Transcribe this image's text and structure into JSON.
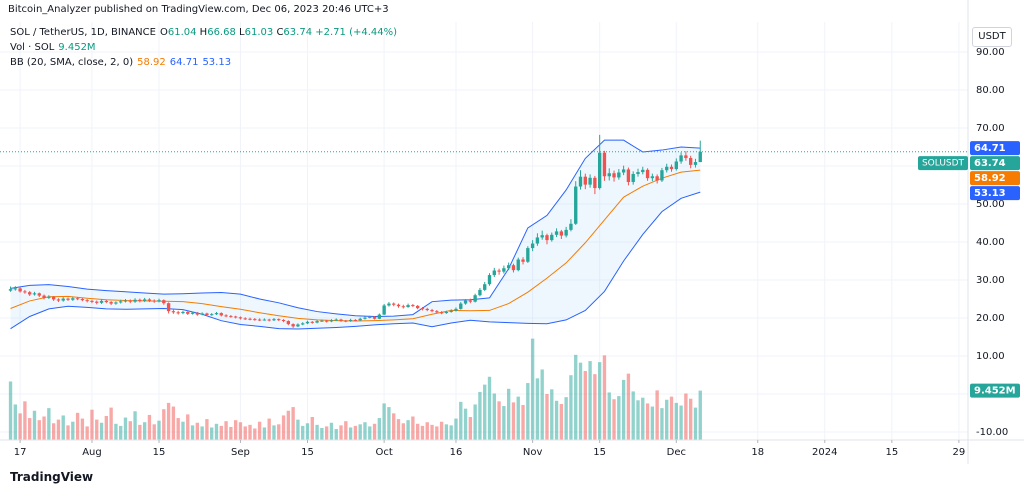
{
  "header": {
    "publisher_line": "Bitcoin_Analyzer published on TradingView.com, Dec 06, 2023 20:46 UTC+3",
    "logo": "TradingView"
  },
  "chart_data": {
    "type": "candlestick",
    "symbol": "SOL / TetherUS, 1D, BINANCE",
    "symbol_badge": "SOLUSDT",
    "price_unit": "USDT",
    "ohlc_letters": [
      "O",
      "H",
      "L",
      "C"
    ],
    "change": {
      "value": 2.71,
      "label": "+2.71"
    },
    "change_pct": {
      "value": 4.44,
      "label": "(+4.44%)"
    },
    "up_color": "#26a69a",
    "down_color": "#ef5350",
    "xlim": [
      -2.2,
      199.9
    ],
    "ylim": [
      -12.1,
      97.9
    ],
    "volume_ylim": [
      0,
      80
    ],
    "grid": true,
    "xticks": [
      {
        "value": 2,
        "label": "17"
      },
      {
        "value": 17,
        "label": "Aug"
      },
      {
        "value": 31,
        "label": "15"
      },
      {
        "value": 48,
        "label": "Sep"
      },
      {
        "value": 62,
        "label": "15"
      },
      {
        "value": 78,
        "label": "Oct"
      },
      {
        "value": 93,
        "label": "16"
      },
      {
        "value": 109,
        "label": "Nov"
      },
      {
        "value": 123,
        "label": "15"
      },
      {
        "value": 139,
        "label": "Dec"
      },
      {
        "value": 156,
        "label": "18"
      },
      {
        "value": 170,
        "label": "2024"
      },
      {
        "value": 184,
        "label": "15"
      },
      {
        "value": 198,
        "label": "29"
      }
    ],
    "yticks": [
      {
        "value": 90,
        "label": "90.00"
      },
      {
        "value": 80,
        "label": "80.00"
      },
      {
        "value": 70,
        "label": "70.00"
      },
      {
        "value": 60,
        "label": "60.00"
      },
      {
        "value": 50,
        "label": "50.00"
      },
      {
        "value": 40,
        "label": "40.00"
      },
      {
        "value": 30,
        "label": "30.00"
      },
      {
        "value": 20,
        "label": "20.00"
      },
      {
        "value": 10,
        "label": "10.00"
      },
      {
        "value": 0,
        "label": "0.00"
      },
      {
        "value": -10,
        "label": "-10.00"
      }
    ],
    "ohlc": [
      [
        27.2,
        28.3,
        26.9,
        27.6
      ],
      [
        27.6,
        28.4,
        27.2,
        27.8
      ],
      [
        27.8,
        28.1,
        26.7,
        27.0
      ],
      [
        27.0,
        27.4,
        26.4,
        26.8
      ],
      [
        26.8,
        27.1,
        25.8,
        26.2
      ],
      [
        26.2,
        26.9,
        25.9,
        26.5
      ],
      [
        26.5,
        26.7,
        25.5,
        25.9
      ],
      [
        25.9,
        26.2,
        24.9,
        25.3
      ],
      [
        25.3,
        26.0,
        25.0,
        25.6
      ],
      [
        25.6,
        25.8,
        24.5,
        24.9
      ],
      [
        24.9,
        25.2,
        24.2,
        24.6
      ],
      [
        24.6,
        25.5,
        24.3,
        25.1
      ],
      [
        25.1,
        25.4,
        24.5,
        24.8
      ],
      [
        24.8,
        25.6,
        24.5,
        25.2
      ],
      [
        25.2,
        25.5,
        24.7,
        25.0
      ],
      [
        25.0,
        25.3,
        24.4,
        24.7
      ],
      [
        24.7,
        25.0,
        24.1,
        24.5
      ],
      [
        24.5,
        24.8,
        23.9,
        24.3
      ],
      [
        24.3,
        24.6,
        23.6,
        24.0
      ],
      [
        24.0,
        24.9,
        23.7,
        24.5
      ],
      [
        24.5,
        24.8,
        23.9,
        24.2
      ],
      [
        24.2,
        24.5,
        23.4,
        23.8
      ],
      [
        23.8,
        24.4,
        23.5,
        24.1
      ],
      [
        24.1,
        24.8,
        23.8,
        24.4
      ],
      [
        24.4,
        25.0,
        24.1,
        24.6
      ],
      [
        24.6,
        24.9,
        23.9,
        24.3
      ],
      [
        24.3,
        25.2,
        24.0,
        24.8
      ],
      [
        24.8,
        25.1,
        24.1,
        24.5
      ],
      [
        24.5,
        25.3,
        24.2,
        24.9
      ],
      [
        24.9,
        25.2,
        24.2,
        24.6
      ],
      [
        24.6,
        24.9,
        24.0,
        24.4
      ],
      [
        24.4,
        25.1,
        24.1,
        24.7
      ],
      [
        24.7,
        24.9,
        23.5,
        23.9
      ],
      [
        23.9,
        24.1,
        21.2,
        21.8
      ],
      [
        21.8,
        22.2,
        21.1,
        21.5
      ],
      [
        21.5,
        21.9,
        20.9,
        21.3
      ],
      [
        21.3,
        21.9,
        21.0,
        21.6
      ],
      [
        21.6,
        21.8,
        20.8,
        21.1
      ],
      [
        21.1,
        21.7,
        20.9,
        21.4
      ],
      [
        21.4,
        21.6,
        20.6,
        20.9
      ],
      [
        20.9,
        21.5,
        20.7,
        21.2
      ],
      [
        21.2,
        21.4,
        20.5,
        20.8
      ],
      [
        20.8,
        21.3,
        20.6,
        21.0
      ],
      [
        21.0,
        21.6,
        20.8,
        21.3
      ],
      [
        21.3,
        21.5,
        20.4,
        20.7
      ],
      [
        20.7,
        21.0,
        20.2,
        20.5
      ],
      [
        20.5,
        20.8,
        20.1,
        20.4
      ],
      [
        20.4,
        20.6,
        19.9,
        20.2
      ],
      [
        20.2,
        20.4,
        19.6,
        19.9
      ],
      [
        19.9,
        20.2,
        19.5,
        19.8
      ],
      [
        19.8,
        20.1,
        19.4,
        19.7
      ],
      [
        19.7,
        20.0,
        19.3,
        19.6
      ],
      [
        19.6,
        19.9,
        19.2,
        19.5
      ],
      [
        19.5,
        19.9,
        19.3,
        19.6
      ],
      [
        19.6,
        19.8,
        19.1,
        19.4
      ],
      [
        19.4,
        20.0,
        19.2,
        19.7
      ],
      [
        19.7,
        19.9,
        19.2,
        19.5
      ],
      [
        19.5,
        19.7,
        18.9,
        19.2
      ],
      [
        19.2,
        19.4,
        18.1,
        18.4
      ],
      [
        18.4,
        18.6,
        17.4,
        17.8
      ],
      [
        17.8,
        18.6,
        17.6,
        18.3
      ],
      [
        18.3,
        18.9,
        18.1,
        18.6
      ],
      [
        18.6,
        19.3,
        18.4,
        19.0
      ],
      [
        19.0,
        19.2,
        18.5,
        18.8
      ],
      [
        18.8,
        19.5,
        18.6,
        19.2
      ],
      [
        19.2,
        19.6,
        19.0,
        19.3
      ],
      [
        19.3,
        19.5,
        18.8,
        19.1
      ],
      [
        19.1,
        19.7,
        18.9,
        19.4
      ],
      [
        19.4,
        19.9,
        19.2,
        19.6
      ],
      [
        19.6,
        19.8,
        19.0,
        19.3
      ],
      [
        19.3,
        19.5,
        18.9,
        19.2
      ],
      [
        19.2,
        19.8,
        19.0,
        19.5
      ],
      [
        19.5,
        19.7,
        19.1,
        19.4
      ],
      [
        19.4,
        20.1,
        19.2,
        19.8
      ],
      [
        19.8,
        20.4,
        19.6,
        20.1
      ],
      [
        20.1,
        20.6,
        19.9,
        20.3
      ],
      [
        20.3,
        20.5,
        19.6,
        19.8
      ],
      [
        19.8,
        21.2,
        19.7,
        20.9
      ],
      [
        20.9,
        23.7,
        20.8,
        23.3
      ],
      [
        23.3,
        24.2,
        23.0,
        23.8
      ],
      [
        23.8,
        24.1,
        23.1,
        23.5
      ],
      [
        23.5,
        23.8,
        22.7,
        23.1
      ],
      [
        23.1,
        23.5,
        22.5,
        22.9
      ],
      [
        22.9,
        23.8,
        22.7,
        23.4
      ],
      [
        23.4,
        23.7,
        22.9,
        23.2
      ],
      [
        23.2,
        23.4,
        22.3,
        22.6
      ],
      [
        22.6,
        22.9,
        22.0,
        22.4
      ],
      [
        22.4,
        22.7,
        21.8,
        22.1
      ],
      [
        22.1,
        22.4,
        21.5,
        21.8
      ],
      [
        21.8,
        22.1,
        21.2,
        21.5
      ],
      [
        21.5,
        21.8,
        21.0,
        21.3
      ],
      [
        21.3,
        21.9,
        21.1,
        21.6
      ],
      [
        21.6,
        22.3,
        21.4,
        21.9
      ],
      [
        21.9,
        22.8,
        21.7,
        22.4
      ],
      [
        22.4,
        24.2,
        22.2,
        23.8
      ],
      [
        23.8,
        25.0,
        23.5,
        24.6
      ],
      [
        24.6,
        25.1,
        23.9,
        24.3
      ],
      [
        24.3,
        26.4,
        24.1,
        26.0
      ],
      [
        26.0,
        27.9,
        25.7,
        27.4
      ],
      [
        27.4,
        29.5,
        27.1,
        28.9
      ],
      [
        28.9,
        31.8,
        28.5,
        31.3
      ],
      [
        31.3,
        33.2,
        30.8,
        32.5
      ],
      [
        32.5,
        33.0,
        31.4,
        32.2
      ],
      [
        32.2,
        33.8,
        31.7,
        33.1
      ],
      [
        33.1,
        34.6,
        32.6,
        33.9
      ],
      [
        33.9,
        34.3,
        32.0,
        32.6
      ],
      [
        32.6,
        35.9,
        32.3,
        35.4
      ],
      [
        35.4,
        36.0,
        34.1,
        34.8
      ],
      [
        34.8,
        38.9,
        34.5,
        38.4
      ],
      [
        38.4,
        40.5,
        37.6,
        39.6
      ],
      [
        39.6,
        42.3,
        39.0,
        41.2
      ],
      [
        41.2,
        43.0,
        40.6,
        41.8
      ],
      [
        41.8,
        42.2,
        39.4,
        40.5
      ],
      [
        40.5,
        42.5,
        40.1,
        41.9
      ],
      [
        41.9,
        43.6,
        41.3,
        42.8
      ],
      [
        42.8,
        43.2,
        40.8,
        41.7
      ],
      [
        41.7,
        44.0,
        41.2,
        43.2
      ],
      [
        43.2,
        46.0,
        42.8,
        44.8
      ],
      [
        44.8,
        56.0,
        44.5,
        54.6
      ],
      [
        54.6,
        58.9,
        53.8,
        57.2
      ],
      [
        57.2,
        58.0,
        53.9,
        55.1
      ],
      [
        55.1,
        57.8,
        54.3,
        56.9
      ],
      [
        56.9,
        57.4,
        52.6,
        54.2
      ],
      [
        54.2,
        68.2,
        53.8,
        63.5
      ],
      [
        63.5,
        64.0,
        56.1,
        57.3
      ],
      [
        57.3,
        59.4,
        56.2,
        58.1
      ],
      [
        58.1,
        58.8,
        55.9,
        57.0
      ],
      [
        57.0,
        59.2,
        56.4,
        58.3
      ],
      [
        58.3,
        60.1,
        57.6,
        59.1
      ],
      [
        59.1,
        59.6,
        54.9,
        55.8
      ],
      [
        55.8,
        58.6,
        55.1,
        57.9
      ],
      [
        57.9,
        59.3,
        57.2,
        58.4
      ],
      [
        58.4,
        59.8,
        57.8,
        59.0
      ],
      [
        59.0,
        59.4,
        56.1,
        56.8
      ],
      [
        56.8,
        58.0,
        56.0,
        57.3
      ],
      [
        57.3,
        57.8,
        55.4,
        56.2
      ],
      [
        56.2,
        59.5,
        55.8,
        58.9
      ],
      [
        58.9,
        60.6,
        58.3,
        59.8
      ],
      [
        59.8,
        60.4,
        58.5,
        59.2
      ],
      [
        59.2,
        62.0,
        58.8,
        61.2
      ],
      [
        61.2,
        63.6,
        60.6,
        62.8
      ],
      [
        62.8,
        63.9,
        61.4,
        62.1
      ],
      [
        62.1,
        62.7,
        59.4,
        60.3
      ],
      [
        60.3,
        61.9,
        59.6,
        61.04
      ],
      [
        61.04,
        66.68,
        61.03,
        63.74
      ]
    ],
    "volume": {
      "name": "Vol · SOL",
      "last_label": "9.452M",
      "values": [
        11.2,
        6.8,
        5.1,
        7.4,
        4.2,
        5.6,
        3.8,
        4.5,
        6.1,
        3.2,
        3.9,
        4.7,
        2.8,
        3.5,
        5.2,
        4.1,
        2.6,
        5.8,
        3.9,
        3.3,
        4.6,
        6.2,
        3.1,
        2.7,
        4.3,
        3.6,
        5.5,
        2.9,
        3.4,
        4.8,
        3.0,
        3.7,
        5.9,
        7.1,
        6.4,
        4.2,
        3.5,
        4.9,
        2.8,
        3.3,
        2.6,
        4.0,
        2.4,
        3.1,
        2.7,
        3.6,
        2.5,
        3.8,
        3.4,
        2.6,
        2.9,
        2.2,
        3.5,
        2.4,
        4.1,
        2.8,
        3.0,
        4.7,
        5.6,
        6.3,
        3.9,
        2.7,
        3.2,
        4.4,
        2.9,
        2.3,
        2.6,
        3.3,
        2.1,
        2.8,
        3.6,
        2.4,
        2.7,
        3.0,
        3.4,
        2.6,
        3.1,
        4.2,
        7.0,
        6.3,
        5.1,
        4.0,
        3.2,
        3.8,
        4.5,
        3.1,
        2.7,
        3.4,
        2.9,
        2.6,
        3.5,
        3.0,
        2.8,
        4.1,
        7.3,
        6.0,
        4.4,
        6.8,
        9.2,
        10.6,
        12.1,
        8.9,
        7.4,
        6.5,
        9.8,
        7.2,
        8.3,
        6.7,
        10.9,
        19.4,
        11.8,
        13.5,
        8.8,
        9.7,
        7.5,
        6.9,
        8.2,
        12.4,
        16.3,
        14.8,
        13.2,
        15.1,
        12.6,
        14.9,
        16.2,
        9.1,
        7.8,
        8.4,
        11.5,
        12.7,
        9.3,
        7.6,
        8.1,
        7.0,
        6.4,
        9.5,
        6.1,
        7.7,
        8.3,
        7.1,
        6.6,
        8.9,
        7.9,
        6.2,
        9.452
      ]
    },
    "bb": {
      "name": "BB (20, SMA, close, 2, 0)",
      "upper_color": "#2962ff",
      "middle_color": "#f57c00",
      "lower_color": "#2962ff",
      "fill_color": "#2196f3",
      "x": [
        0,
        4,
        8,
        12,
        16,
        20,
        24,
        28,
        32,
        36,
        40,
        44,
        48,
        52,
        56,
        60,
        64,
        68,
        72,
        76,
        80,
        84,
        88,
        92,
        96,
        100,
        104,
        108,
        112,
        116,
        120,
        124,
        128,
        132,
        136,
        140,
        144
      ],
      "upper": [
        27.8,
        28.6,
        28.8,
        28.3,
        27.6,
        27.2,
        26.9,
        26.6,
        26.3,
        26.4,
        26.6,
        26.7,
        26.3,
        25.0,
        24.0,
        22.7,
        21.7,
        21.1,
        20.6,
        20.4,
        20.5,
        20.9,
        24.3,
        24.7,
        24.8,
        25.3,
        33.0,
        43.7,
        47.0,
        53.7,
        62.0,
        66.8,
        66.8,
        63.7,
        64.2,
        65.0,
        64.71
      ],
      "middle": [
        22.5,
        24.5,
        25.6,
        25.7,
        25.2,
        24.8,
        24.6,
        24.5,
        24.4,
        24.3,
        23.8,
        23.0,
        22.3,
        21.4,
        20.6,
        19.9,
        19.5,
        19.3,
        19.2,
        19.3,
        19.5,
        19.8,
        21.0,
        22.0,
        21.9,
        22.0,
        23.8,
        26.8,
        30.5,
        34.5,
        39.8,
        45.8,
        51.8,
        54.7,
        56.8,
        58.4,
        58.92
      ],
      "lower": [
        17.2,
        20.4,
        22.4,
        23.1,
        22.8,
        22.4,
        22.3,
        22.4,
        22.5,
        22.2,
        21.0,
        19.3,
        18.3,
        17.8,
        17.2,
        17.1,
        17.3,
        17.5,
        17.8,
        18.2,
        18.5,
        18.7,
        17.7,
        18.7,
        19.4,
        19.0,
        18.8,
        18.6,
        18.5,
        19.5,
        22.0,
        27.0,
        35.0,
        42.0,
        48.0,
        51.5,
        53.13
      ]
    }
  }
}
